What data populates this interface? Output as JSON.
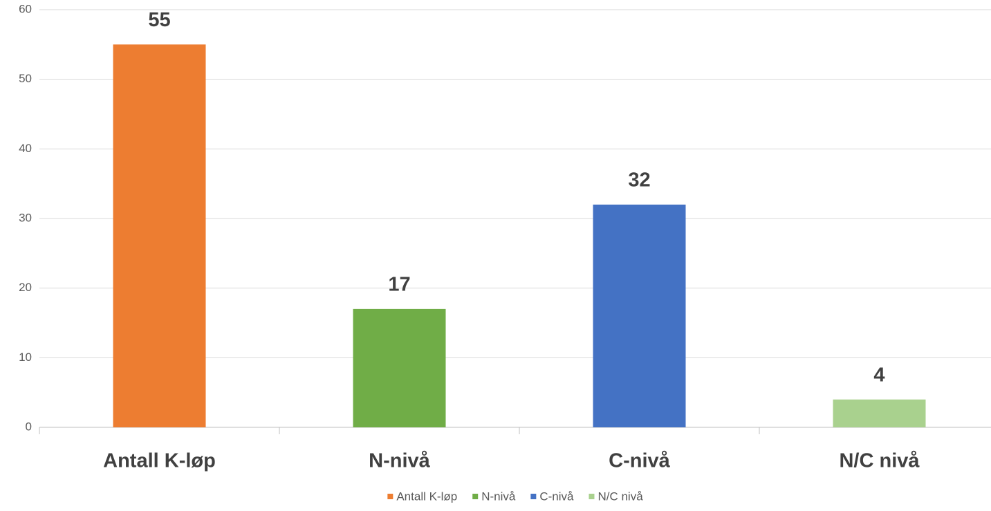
{
  "chart_data": {
    "type": "bar",
    "categories": [
      "Antall K-løp",
      "N-nivå",
      "C-nivå",
      "N/C nivå"
    ],
    "values": [
      55,
      17,
      32,
      4
    ],
    "colors": [
      "#ed7d31",
      "#70ad47",
      "#4472c4",
      "#a9d18e"
    ],
    "ylim": [
      0,
      60
    ],
    "yticks": [
      0,
      10,
      20,
      30,
      40,
      50,
      60
    ],
    "grid": true,
    "legend": "bottom"
  }
}
